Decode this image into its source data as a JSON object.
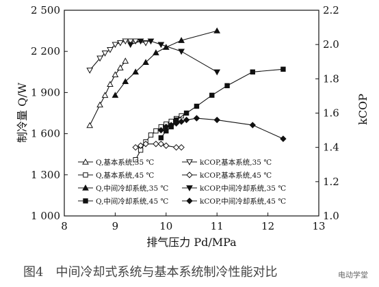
{
  "figure": {
    "caption": "图4　中间冷却式系统与基本系统制冷性能对比",
    "watermark": "电动学堂"
  },
  "chart_data": {
    "type": "line",
    "xlabel": "排气压力 Pd/MPa",
    "ylabel_left": "制冷量 Q/W",
    "ylabel_right": "kCOP",
    "xlim": [
      8,
      13
    ],
    "ylim_left": [
      1000,
      2500
    ],
    "ylim_right": [
      1.0,
      2.2
    ],
    "x_ticks": [
      "8",
      "9",
      "10",
      "11",
      "12",
      "13"
    ],
    "y_left_ticks": [
      "1 000",
      "1 300",
      "1 600",
      "1 900",
      "2 200",
      "2 500"
    ],
    "y_right_ticks": [
      "1.0",
      "1.2",
      "1.4",
      "1.6",
      "1.8",
      "2.0",
      "2.2"
    ],
    "legend_placement": "bottom-center",
    "series": [
      {
        "name": "Q,基本系统,35 ℃",
        "axis": "left",
        "marker": "triangle-up-open",
        "x": [
          8.5,
          8.7,
          8.8,
          8.9,
          9.0,
          9.1,
          9.2
        ],
        "y": [
          1660,
          1810,
          1880,
          1960,
          2030,
          2080,
          2130
        ]
      },
      {
        "name": "Q,基本系统,45 ℃",
        "axis": "left",
        "marker": "square-open",
        "x": [
          9.4,
          9.5,
          9.6,
          9.7,
          9.8,
          9.9,
          10.0,
          10.1,
          10.2,
          10.3
        ],
        "y": [
          1410,
          1480,
          1540,
          1590,
          1620,
          1650,
          1670,
          1690,
          1710,
          1730
        ]
      },
      {
        "name": "Q,中间冷却系统,35 ℃",
        "axis": "left",
        "marker": "triangle-up-filled",
        "x": [
          9.0,
          9.2,
          9.4,
          9.6,
          9.8,
          10.0,
          10.3,
          11.0
        ],
        "y": [
          1880,
          1980,
          2050,
          2120,
          2190,
          2230,
          2280,
          2350
        ]
      },
      {
        "name": "Q,中间冷却系统,45 ℃",
        "axis": "left",
        "marker": "square-filled",
        "x": [
          9.9,
          10.0,
          10.1,
          10.2,
          10.4,
          10.6,
          10.9,
          11.2,
          11.7,
          12.3
        ],
        "y": [
          1570,
          1620,
          1650,
          1700,
          1750,
          1800,
          1880,
          1950,
          2050,
          2070
        ]
      },
      {
        "name": "kCOP,基本系统,35 ℃",
        "axis": "right",
        "marker": "triangle-down-open",
        "x": [
          8.5,
          8.7,
          8.8,
          8.9,
          9.0,
          9.1,
          9.2,
          9.3,
          9.4,
          9.6
        ],
        "y": [
          1.85,
          1.92,
          1.95,
          1.97,
          2.0,
          2.01,
          2.02,
          2.02,
          2.02,
          2.01
        ]
      },
      {
        "name": "kCOP,基本系统,45 ℃",
        "axis": "right",
        "marker": "diamond-open",
        "x": [
          9.4,
          9.5,
          9.6,
          9.8,
          9.9,
          10.0,
          10.2,
          10.3
        ],
        "y": [
          1.4,
          1.41,
          1.42,
          1.42,
          1.42,
          1.41,
          1.4,
          1.4
        ]
      },
      {
        "name": "kCOP,中间冷却系统,35 ℃",
        "axis": "right",
        "marker": "triangle-down-filled",
        "x": [
          9.3,
          9.5,
          9.7,
          9.9,
          10.3,
          11.0
        ],
        "y": [
          2.0,
          2.02,
          2.02,
          2.0,
          1.96,
          1.84
        ]
      },
      {
        "name": "kCOP,中间冷却系统,45 ℃",
        "axis": "right",
        "marker": "diamond-filled",
        "x": [
          9.9,
          10.0,
          10.1,
          10.2,
          10.3,
          10.4,
          10.6,
          11.0,
          11.7,
          12.3
        ],
        "y": [
          1.5,
          1.52,
          1.53,
          1.54,
          1.55,
          1.56,
          1.57,
          1.56,
          1.53,
          1.45
        ]
      }
    ]
  }
}
